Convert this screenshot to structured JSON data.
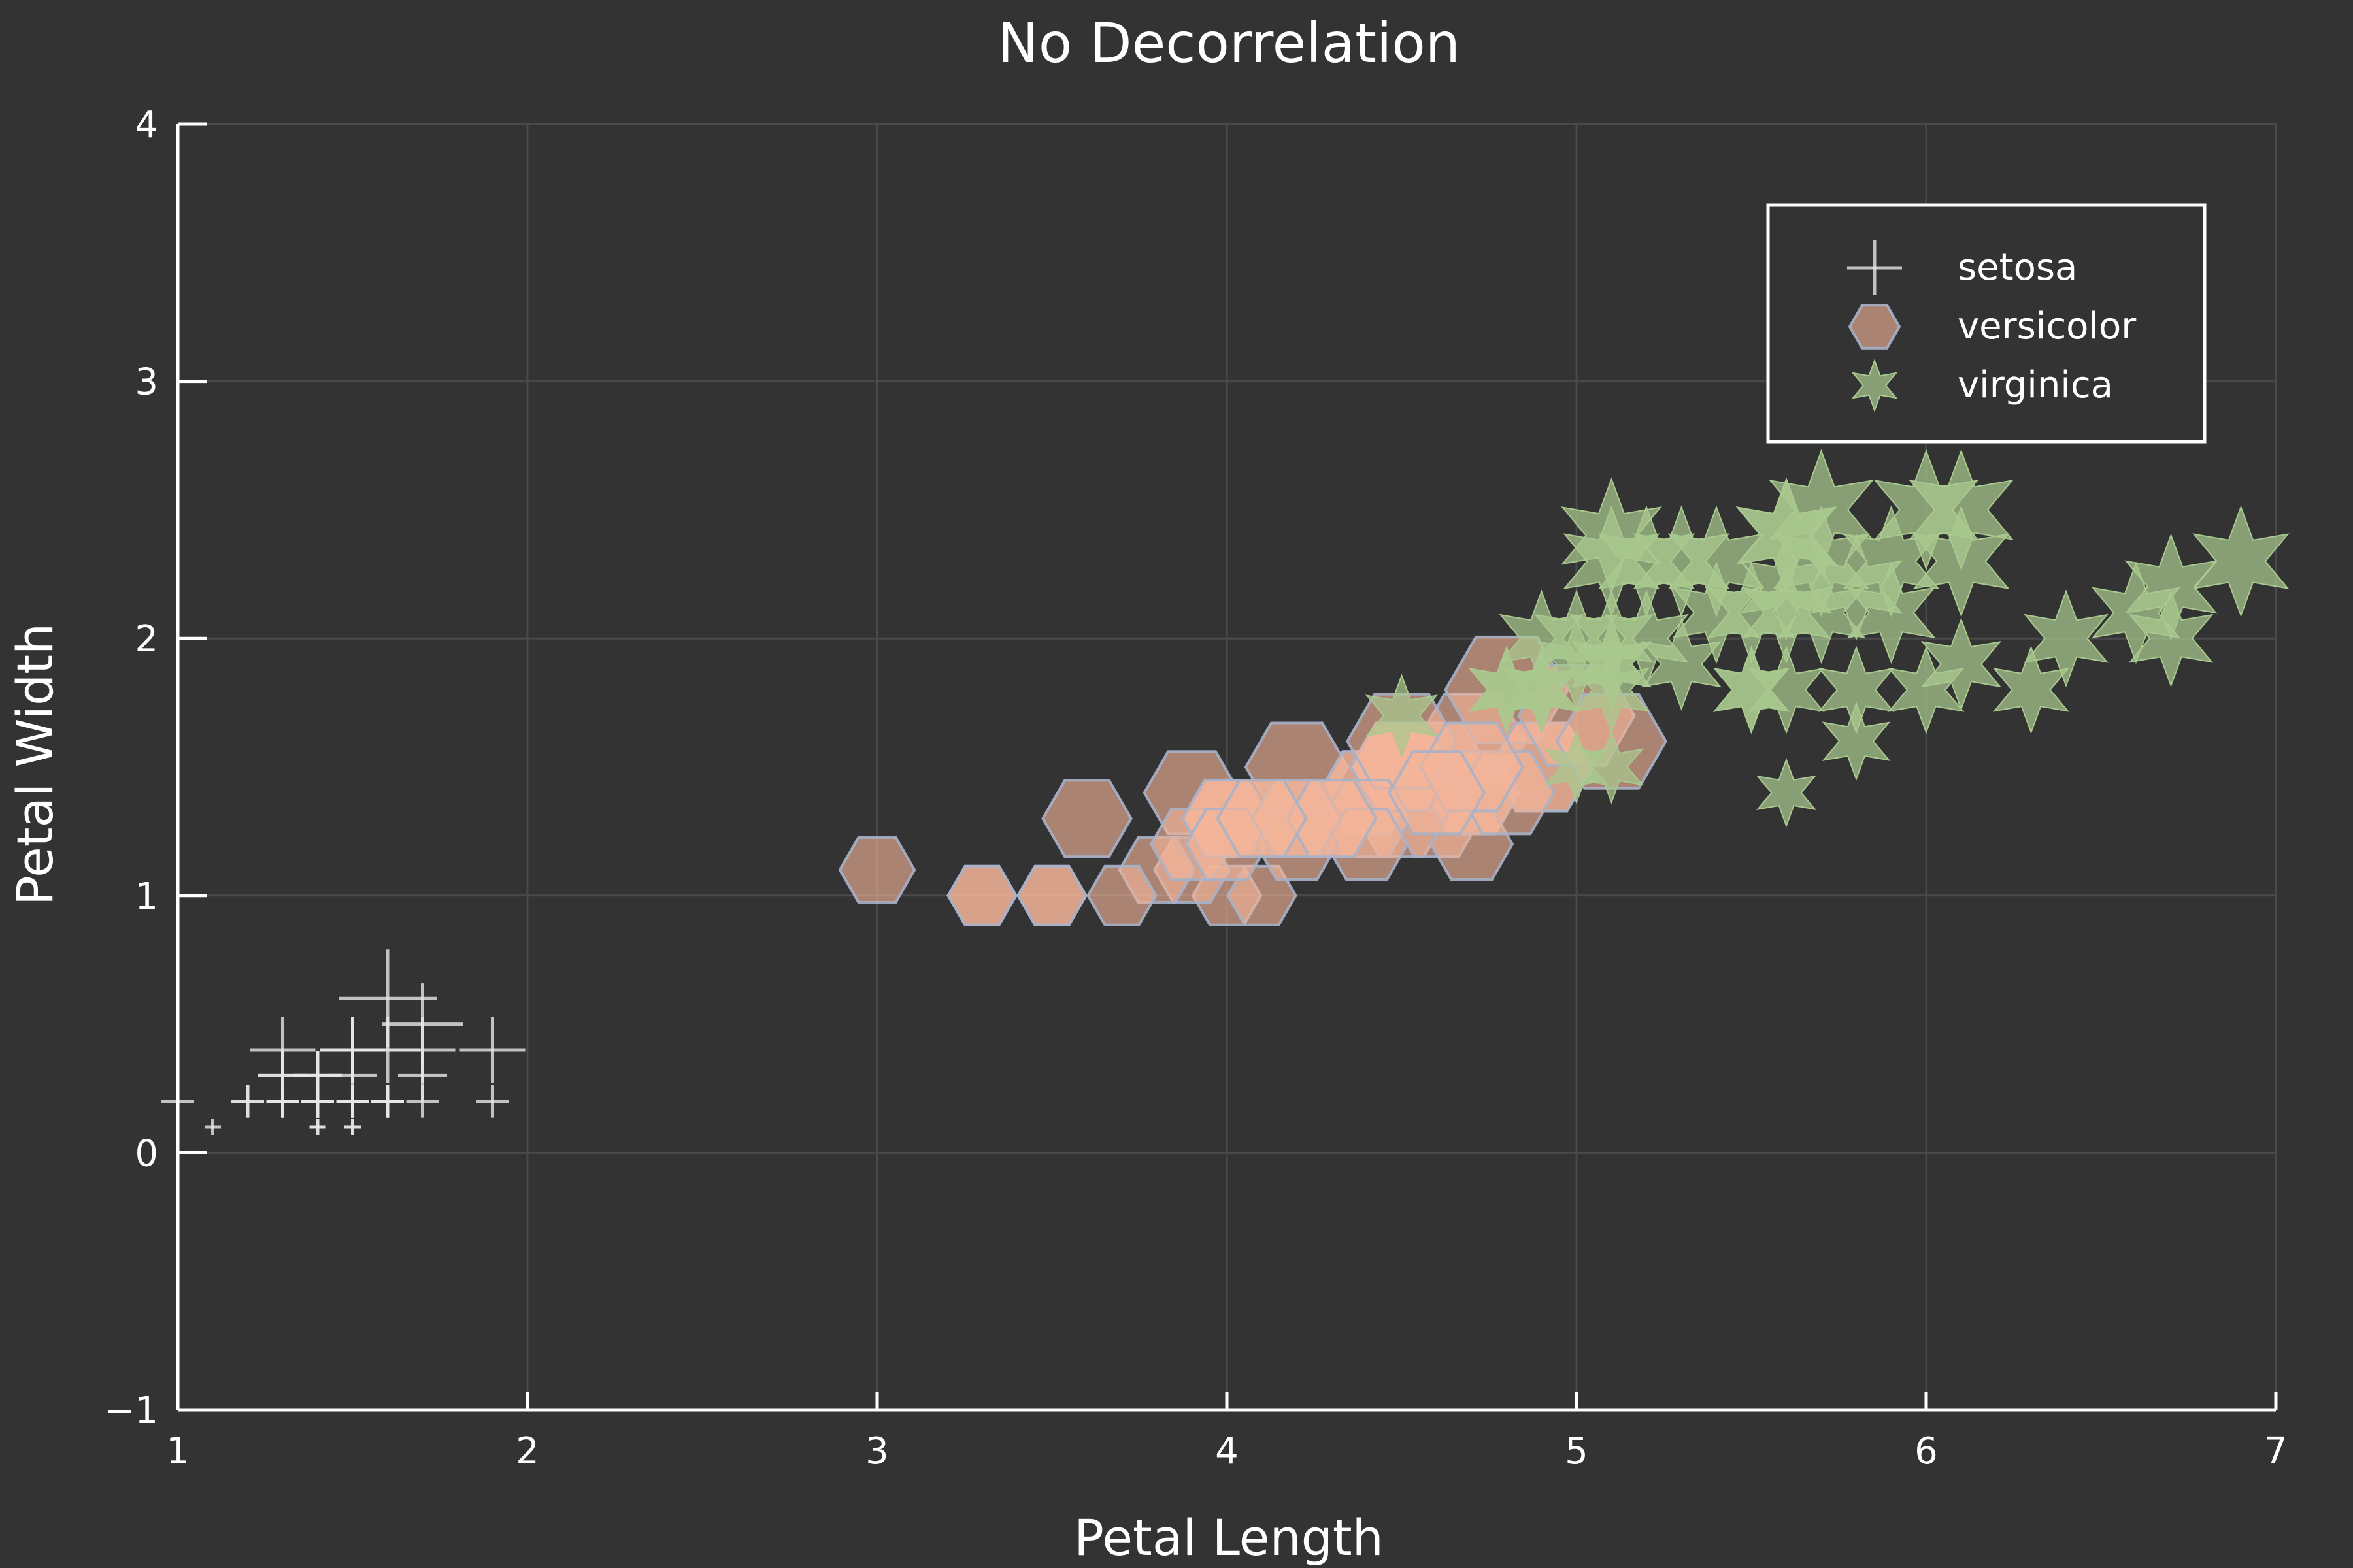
{
  "chart_data": {
    "type": "scatter",
    "title": "No Decorrelation",
    "xlabel": "Petal Length",
    "ylabel": "Petal Width",
    "xlim": [
      1,
      7
    ],
    "ylim": [
      -1,
      4
    ],
    "xticks": [
      1,
      2,
      3,
      4,
      5,
      6,
      7
    ],
    "yticks": [
      -1,
      0,
      1,
      2,
      3,
      4
    ],
    "ytick_labels": [
      "−1",
      "0",
      "1",
      "2",
      "3",
      "4"
    ],
    "grid": true,
    "legend_position": "top-right",
    "colors": {
      "background": "#333333",
      "axis": "#ffffff",
      "grid": "#4a4a4a",
      "setosa": "#e6e6e6",
      "versicolor": "#f4b49a",
      "versicolor_stroke": "#a7b1c9",
      "virginica": "#a9c98f"
    },
    "series": [
      {
        "name": "setosa",
        "marker": "cross",
        "x": [
          1.4,
          1.4,
          1.3,
          1.5,
          1.4,
          1.7,
          1.4,
          1.5,
          1.4,
          1.5,
          1.5,
          1.6,
          1.4,
          1.1,
          1.2,
          1.5,
          1.3,
          1.4,
          1.7,
          1.5,
          1.7,
          1.5,
          1.0,
          1.7,
          1.9,
          1.6,
          1.6,
          1.5,
          1.4,
          1.6,
          1.6,
          1.5,
          1.5,
          1.4,
          1.5,
          1.2,
          1.3,
          1.4,
          1.3,
          1.5,
          1.3,
          1.3,
          1.3,
          1.6,
          1.9,
          1.4,
          1.6,
          1.4,
          1.5,
          1.4
        ],
        "y": [
          0.2,
          0.2,
          0.2,
          0.2,
          0.2,
          0.4,
          0.3,
          0.2,
          0.2,
          0.1,
          0.2,
          0.2,
          0.1,
          0.1,
          0.2,
          0.4,
          0.4,
          0.3,
          0.3,
          0.3,
          0.2,
          0.4,
          0.2,
          0.5,
          0.2,
          0.2,
          0.4,
          0.2,
          0.2,
          0.2,
          0.2,
          0.4,
          0.1,
          0.2,
          0.2,
          0.2,
          0.2,
          0.1,
          0.2,
          0.2,
          0.3,
          0.3,
          0.2,
          0.6,
          0.4,
          0.3,
          0.2,
          0.2,
          0.2,
          0.2
        ],
        "size": [
          0.2,
          0.2,
          0.2,
          0.2,
          0.2,
          0.4,
          0.3,
          0.2,
          0.2,
          0.1,
          0.2,
          0.2,
          0.1,
          0.1,
          0.2,
          0.4,
          0.4,
          0.3,
          0.3,
          0.3,
          0.2,
          0.4,
          0.2,
          0.5,
          0.2,
          0.2,
          0.4,
          0.2,
          0.2,
          0.2,
          0.2,
          0.4,
          0.1,
          0.2,
          0.2,
          0.2,
          0.2,
          0.1,
          0.2,
          0.2,
          0.3,
          0.3,
          0.2,
          0.6,
          0.4,
          0.3,
          0.2,
          0.2,
          0.2,
          0.2
        ]
      },
      {
        "name": "versicolor",
        "marker": "hexagon",
        "x": [
          4.7,
          4.5,
          4.9,
          4.0,
          4.6,
          4.5,
          4.7,
          3.3,
          4.6,
          3.9,
          3.5,
          4.2,
          4.0,
          4.7,
          3.6,
          4.4,
          4.5,
          4.1,
          4.5,
          3.9,
          4.8,
          4.0,
          4.9,
          4.7,
          4.3,
          4.4,
          4.8,
          5.0,
          4.5,
          3.5,
          3.8,
          3.7,
          3.9,
          5.1,
          4.5,
          4.5,
          4.7,
          4.4,
          4.1,
          4.0,
          4.4,
          4.6,
          4.0,
          3.3,
          4.2,
          4.2,
          4.2,
          4.3,
          3.0,
          4.1
        ],
        "y": [
          1.4,
          1.5,
          1.5,
          1.3,
          1.5,
          1.3,
          1.6,
          1.0,
          1.3,
          1.4,
          1.0,
          1.5,
          1.0,
          1.4,
          1.3,
          1.4,
          1.5,
          1.0,
          1.5,
          1.1,
          1.8,
          1.3,
          1.5,
          1.2,
          1.3,
          1.4,
          1.4,
          1.7,
          1.5,
          1.0,
          1.1,
          1.0,
          1.2,
          1.6,
          1.5,
          1.6,
          1.5,
          1.3,
          1.3,
          1.3,
          1.2,
          1.4,
          1.2,
          1.0,
          1.3,
          1.2,
          1.3,
          1.3,
          1.1,
          1.3
        ],
        "size": [
          1.4,
          1.5,
          1.5,
          1.3,
          1.5,
          1.3,
          1.6,
          1.0,
          1.3,
          1.4,
          1.0,
          1.5,
          1.0,
          1.4,
          1.3,
          1.4,
          1.5,
          1.0,
          1.5,
          1.1,
          1.8,
          1.3,
          1.5,
          1.2,
          1.3,
          1.4,
          1.4,
          1.7,
          1.5,
          1.0,
          1.1,
          1.0,
          1.2,
          1.6,
          1.5,
          1.6,
          1.5,
          1.3,
          1.3,
          1.3,
          1.2,
          1.4,
          1.2,
          1.0,
          1.3,
          1.2,
          1.3,
          1.3,
          1.1,
          1.3
        ]
      },
      {
        "name": "virginica",
        "marker": "star",
        "x": [
          6.0,
          5.1,
          5.9,
          5.6,
          5.8,
          6.6,
          4.5,
          6.3,
          5.8,
          6.1,
          5.1,
          5.3,
          5.5,
          5.0,
          5.1,
          5.3,
          5.5,
          6.7,
          6.9,
          5.0,
          5.7,
          4.9,
          6.7,
          4.9,
          5.7,
          6.0,
          4.8,
          4.9,
          5.6,
          5.8,
          6.1,
          6.4,
          5.6,
          5.1,
          5.6,
          6.1,
          5.6,
          5.5,
          4.8,
          5.4,
          5.6,
          5.1,
          5.1,
          5.9,
          5.7,
          5.2,
          5.0,
          5.2,
          5.4,
          5.1
        ],
        "y": [
          2.5,
          1.9,
          2.1,
          1.8,
          2.2,
          2.1,
          1.7,
          1.8,
          1.8,
          2.5,
          2.0,
          1.9,
          2.1,
          2.0,
          2.4,
          2.3,
          1.8,
          2.2,
          2.3,
          1.5,
          2.3,
          2.0,
          2.0,
          1.8,
          2.1,
          1.8,
          1.8,
          1.8,
          2.1,
          1.6,
          1.9,
          2.0,
          2.2,
          1.5,
          1.4,
          2.3,
          2.4,
          1.8,
          1.8,
          2.1,
          2.4,
          2.3,
          1.9,
          2.3,
          2.5,
          2.3,
          1.9,
          2.0,
          2.3,
          1.8
        ],
        "size": [
          2.5,
          1.9,
          2.1,
          1.8,
          2.2,
          2.1,
          1.7,
          1.8,
          1.8,
          2.5,
          2.0,
          1.9,
          2.1,
          2.0,
          2.4,
          2.3,
          1.8,
          2.2,
          2.3,
          1.5,
          2.3,
          2.0,
          2.0,
          1.8,
          2.1,
          1.8,
          1.8,
          1.8,
          2.1,
          1.6,
          1.9,
          2.0,
          2.2,
          1.5,
          1.4,
          2.3,
          2.4,
          1.8,
          1.8,
          2.1,
          2.4,
          2.3,
          1.9,
          2.3,
          2.5,
          2.3,
          1.9,
          2.0,
          2.3,
          1.8
        ]
      }
    ]
  }
}
